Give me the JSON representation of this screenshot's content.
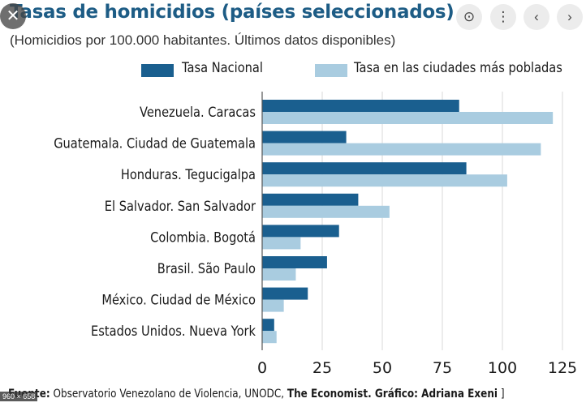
{
  "colors": {
    "national": "#1a5f8f",
    "cities": "#a9cce0",
    "title": "#1d5c85"
  },
  "header": {
    "title": "Tasas de homicidios (países seleccionados)",
    "subtitle": "(Homicidios por 100.000 habitantes. Últimos datos disponibles)"
  },
  "viewer": {
    "close_icon": "✕",
    "lens_icon": "⊙",
    "more_icon": "⋮",
    "prev_icon": "‹",
    "next_icon": "›",
    "dimensions": "960 × 658"
  },
  "source": {
    "prefix": "Fuente:",
    "sources": "Observatorio Venezolano de Violencia, UNODC,",
    "economist": "The Economist. Gráfico: Adriana Exeni",
    "suffix": "]"
  },
  "chart_data": {
    "type": "bar",
    "orientation": "horizontal",
    "categories": [
      "Venezuela. Caracas",
      "Guatemala. Ciudad de Guatemala",
      "Honduras. Tegucigalpa",
      "El Salvador. San Salvador",
      "Colombia. Bogotá",
      "Brasil. São Paulo",
      "México. Ciudad de México",
      "Estados Unidos. Nueva York"
    ],
    "series": [
      {
        "name": "Tasa Nacional",
        "values": [
          82,
          35,
          85,
          40,
          32,
          27,
          19,
          5
        ]
      },
      {
        "name": "Tasa en las ciudades más pobladas",
        "values": [
          121,
          116,
          102,
          53,
          16,
          14,
          9,
          6
        ]
      }
    ],
    "xlim": [
      0,
      125
    ],
    "xticks": [
      0,
      25,
      50,
      75,
      100,
      125
    ],
    "grid": true,
    "legend": "top"
  }
}
